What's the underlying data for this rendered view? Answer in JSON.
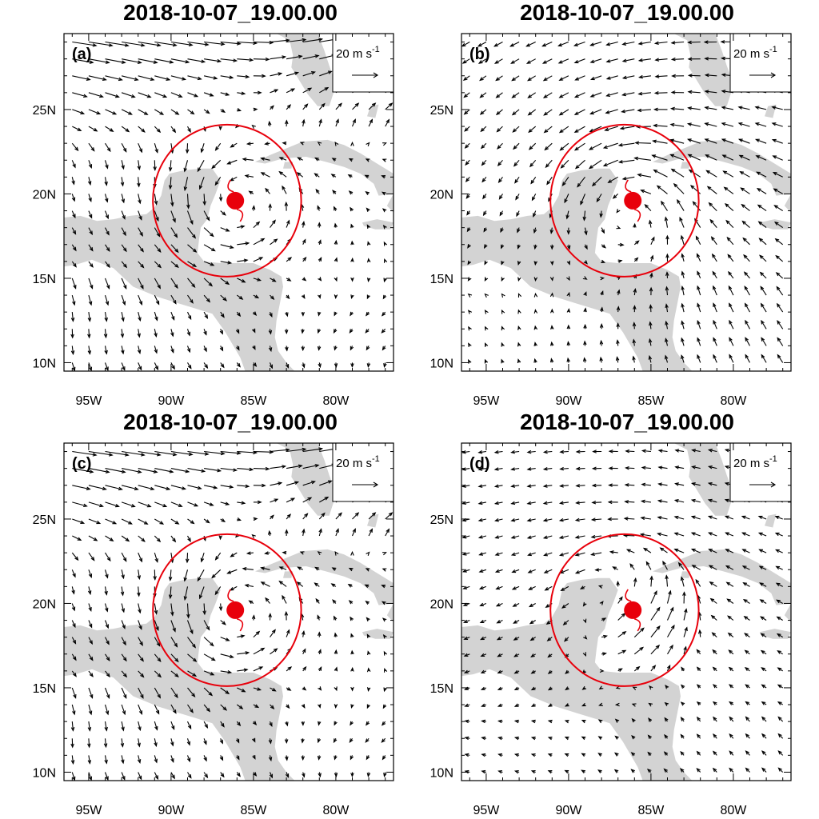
{
  "chart_data": [
    {
      "type": "vector-field",
      "title": "2018-10-07_19.00.00",
      "panel_label": "(a)",
      "reference_vector": {
        "magnitude": "20",
        "label": "20 m s",
        "exponent": "-1"
      },
      "x_ticks": [
        "95W",
        "90W",
        "85W",
        "80W"
      ],
      "y_ticks": [
        "25N",
        "20N",
        "15N",
        "10N"
      ],
      "xlim_deg": [
        -96.5,
        -76.5
      ],
      "ylim_deg": [
        9.5,
        29.5
      ],
      "storm_center": {
        "lon": -86.1,
        "lat": 19.6
      },
      "circle_center": {
        "lon": -86.6,
        "lat": 19.6
      },
      "circle_radius_deg": 4.5,
      "vector_pattern": "cyclonic ring, strong westerlies north",
      "colors": {
        "land": "#d3d3d3",
        "circle": "#e8000b",
        "vectors": "#000000"
      }
    },
    {
      "type": "vector-field",
      "title": "2018-10-07_19.00.00",
      "panel_label": "(b)",
      "reference_vector": {
        "magnitude": "20",
        "label": "20 m s",
        "exponent": "-1"
      },
      "x_ticks": [
        "95W",
        "90W",
        "85W",
        "80W"
      ],
      "y_ticks": [
        "25N",
        "20N",
        "15N",
        "10N"
      ],
      "xlim_deg": [
        -96.5,
        -76.5
      ],
      "ylim_deg": [
        9.5,
        29.5
      ],
      "storm_center": {
        "lon": -86.1,
        "lat": 19.6
      },
      "circle_center": {
        "lon": -86.6,
        "lat": 19.6
      },
      "circle_radius_deg": 4.5,
      "vector_pattern": "cyclonic ring, weak easterlies",
      "colors": {
        "land": "#d3d3d3",
        "circle": "#e8000b",
        "vectors": "#000000"
      }
    },
    {
      "type": "vector-field",
      "title": "2018-10-07_19.00.00",
      "panel_label": "(c)",
      "reference_vector": {
        "magnitude": "20",
        "label": "20 m s",
        "exponent": "-1"
      },
      "x_ticks": [
        "95W",
        "90W",
        "85W",
        "80W"
      ],
      "y_ticks": [
        "25N",
        "20N",
        "15N",
        "10N"
      ],
      "xlim_deg": [
        -96.5,
        -76.5
      ],
      "ylim_deg": [
        9.5,
        29.5
      ],
      "storm_center": {
        "lon": -86.1,
        "lat": 19.6
      },
      "circle_center": {
        "lon": -86.6,
        "lat": 19.6
      },
      "circle_radius_deg": 4.5,
      "vector_pattern": "cyclonic ring, strong westerlies north",
      "colors": {
        "land": "#d3d3d3",
        "circle": "#e8000b",
        "vectors": "#000000"
      }
    },
    {
      "type": "vector-field",
      "title": "2018-10-07_19.00.00",
      "panel_label": "(d)",
      "reference_vector": {
        "magnitude": "20",
        "label": "20 m s",
        "exponent": "-1"
      },
      "x_ticks": [
        "95W",
        "90W",
        "85W",
        "80W"
      ],
      "y_ticks": [
        "25N",
        "20N",
        "15N",
        "10N"
      ],
      "xlim_deg": [
        -96.5,
        -76.5
      ],
      "ylim_deg": [
        9.5,
        29.5
      ],
      "storm_center": {
        "lon": -86.1,
        "lat": 19.6
      },
      "circle_center": {
        "lon": -86.6,
        "lat": 19.6
      },
      "circle_radius_deg": 4.5,
      "vector_pattern": "strong southwesterly inside circle, weak easterlies",
      "colors": {
        "land": "#d3d3d3",
        "circle": "#e8000b",
        "vectors": "#000000"
      }
    }
  ]
}
